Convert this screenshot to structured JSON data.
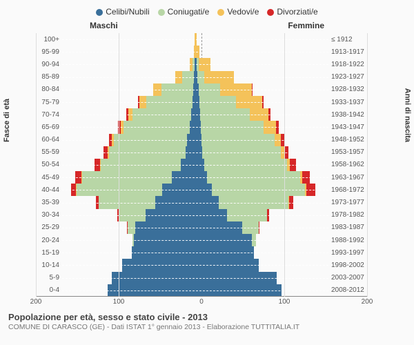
{
  "title": "Popolazione per età, sesso e stato civile - 2013",
  "subtitle": "COMUNE DI CARASCO (GE) - Dati ISTAT 1° gennaio 2013 - Elaborazione TUTTITALIA.IT",
  "legend": [
    {
      "label": "Celibi/Nubili",
      "color": "#3a6f9a"
    },
    {
      "label": "Coniugati/e",
      "color": "#b8d6a6"
    },
    {
      "label": "Vedovi/e",
      "color": "#f4c25a"
    },
    {
      "label": "Divorziati/e",
      "color": "#d62728"
    }
  ],
  "headers": {
    "male": "Maschi",
    "female": "Femmine"
  },
  "axis_titles": {
    "left": "Fasce di età",
    "right": "Anni di nascita"
  },
  "x": {
    "max": 200,
    "ticks": [
      200,
      100,
      0,
      100,
      200
    ]
  },
  "colors": {
    "single": "#3a6f9a",
    "married": "#b8d6a6",
    "widowed": "#f4c25a",
    "divorced": "#d62728",
    "bg": "#fafafa",
    "grid": "#dddddd"
  },
  "rows": [
    {
      "age": "100+",
      "birth": "≤ 1912",
      "m": {
        "single": 0,
        "married": 0,
        "widowed": 1,
        "divorced": 0
      },
      "f": {
        "single": 0,
        "married": 0,
        "widowed": 2,
        "divorced": 0
      }
    },
    {
      "age": "95-99",
      "birth": "1913-1917",
      "m": {
        "single": 0,
        "married": 0,
        "widowed": 2,
        "divorced": 0
      },
      "f": {
        "single": 0,
        "married": 0,
        "widowed": 6,
        "divorced": 0
      }
    },
    {
      "age": "90-94",
      "birth": "1918-1922",
      "m": {
        "single": 1,
        "married": 3,
        "widowed": 4,
        "divorced": 0
      },
      "f": {
        "single": 2,
        "married": 3,
        "widowed": 18,
        "divorced": 0
      }
    },
    {
      "age": "85-89",
      "birth": "1923-1927",
      "m": {
        "single": 2,
        "married": 18,
        "widowed": 10,
        "divorced": 0
      },
      "f": {
        "single": 3,
        "married": 10,
        "widowed": 45,
        "divorced": 0
      }
    },
    {
      "age": "80-84",
      "birth": "1928-1932",
      "m": {
        "single": 3,
        "married": 48,
        "widowed": 12,
        "divorced": 0
      },
      "f": {
        "single": 5,
        "married": 32,
        "widowed": 48,
        "divorced": 1
      }
    },
    {
      "age": "75-79",
      "birth": "1933-1937",
      "m": {
        "single": 4,
        "married": 70,
        "widowed": 10,
        "divorced": 2
      },
      "f": {
        "single": 6,
        "married": 55,
        "widowed": 40,
        "divorced": 2
      }
    },
    {
      "age": "70-74",
      "birth": "1938-1942",
      "m": {
        "single": 6,
        "married": 88,
        "widowed": 7,
        "divorced": 3
      },
      "f": {
        "single": 7,
        "married": 75,
        "widowed": 28,
        "divorced": 3
      }
    },
    {
      "age": "65-69",
      "birth": "1943-1947",
      "m": {
        "single": 8,
        "married": 100,
        "widowed": 4,
        "divorced": 4
      },
      "f": {
        "single": 8,
        "married": 95,
        "widowed": 18,
        "divorced": 4
      }
    },
    {
      "age": "60-64",
      "birth": "1948-1952",
      "m": {
        "single": 12,
        "married": 110,
        "widowed": 3,
        "divorced": 5
      },
      "f": {
        "single": 9,
        "married": 110,
        "widowed": 10,
        "divorced": 5
      }
    },
    {
      "age": "55-59",
      "birth": "1953-1957",
      "m": {
        "single": 15,
        "married": 115,
        "widowed": 2,
        "divorced": 6
      },
      "f": {
        "single": 10,
        "married": 118,
        "widowed": 6,
        "divorced": 6
      }
    },
    {
      "age": "50-54",
      "birth": "1958-1962",
      "m": {
        "single": 22,
        "married": 120,
        "widowed": 1,
        "divorced": 8
      },
      "f": {
        "single": 13,
        "married": 125,
        "widowed": 4,
        "divorced": 9
      }
    },
    {
      "age": "45-49",
      "birth": "1963-1967",
      "m": {
        "single": 35,
        "married": 135,
        "widowed": 1,
        "divorced": 9
      },
      "f": {
        "single": 18,
        "married": 140,
        "widowed": 3,
        "divorced": 11
      }
    },
    {
      "age": "40-44",
      "birth": "1968-1972",
      "m": {
        "single": 50,
        "married": 128,
        "widowed": 1,
        "divorced": 8
      },
      "f": {
        "single": 25,
        "married": 140,
        "widowed": 2,
        "divorced": 13
      }
    },
    {
      "age": "35-39",
      "birth": "1973-1977",
      "m": {
        "single": 60,
        "married": 85,
        "widowed": 0,
        "divorced": 4
      },
      "f": {
        "single": 35,
        "married": 105,
        "widowed": 1,
        "divorced": 6
      }
    },
    {
      "age": "30-34",
      "birth": "1978-1982",
      "m": {
        "single": 75,
        "married": 40,
        "widowed": 0,
        "divorced": 2
      },
      "f": {
        "single": 48,
        "married": 60,
        "widowed": 0,
        "divorced": 3
      }
    },
    {
      "age": "25-29",
      "birth": "1983-1987",
      "m": {
        "single": 90,
        "married": 12,
        "widowed": 0,
        "divorced": 1
      },
      "f": {
        "single": 70,
        "married": 25,
        "widowed": 0,
        "divorced": 1
      }
    },
    {
      "age": "20-24",
      "birth": "1988-1992",
      "m": {
        "single": 92,
        "married": 2,
        "widowed": 0,
        "divorced": 0
      },
      "f": {
        "single": 85,
        "married": 6,
        "widowed": 0,
        "divorced": 0
      }
    },
    {
      "age": "15-19",
      "birth": "1993-1997",
      "m": {
        "single": 95,
        "married": 0,
        "widowed": 0,
        "divorced": 0
      },
      "f": {
        "single": 88,
        "married": 0,
        "widowed": 0,
        "divorced": 0
      }
    },
    {
      "age": "10-14",
      "birth": "1998-2002",
      "m": {
        "single": 110,
        "married": 0,
        "widowed": 0,
        "divorced": 0
      },
      "f": {
        "single": 95,
        "married": 0,
        "widowed": 0,
        "divorced": 0
      }
    },
    {
      "age": "5-9",
      "birth": "2003-2007",
      "m": {
        "single": 125,
        "married": 0,
        "widowed": 0,
        "divorced": 0
      },
      "f": {
        "single": 122,
        "married": 0,
        "widowed": 0,
        "divorced": 0
      }
    },
    {
      "age": "0-4",
      "birth": "2008-2012",
      "m": {
        "single": 132,
        "married": 0,
        "widowed": 0,
        "divorced": 0
      },
      "f": {
        "single": 130,
        "married": 0,
        "widowed": 0,
        "divorced": 0
      }
    }
  ]
}
